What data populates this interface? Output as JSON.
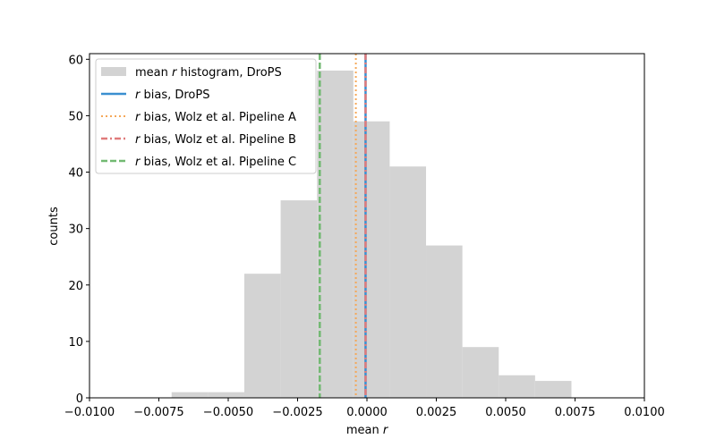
{
  "chart_data": {
    "type": "bar",
    "xlabel": "mean r",
    "xlabel_parts": {
      "prefix": "mean ",
      "italic": "r"
    },
    "ylabel": "counts",
    "xlim": [
      -0.01,
      0.01
    ],
    "ylim": [
      0,
      61
    ],
    "grid": false,
    "x_ticks": [
      -0.01,
      -0.0075,
      -0.005,
      -0.0025,
      0.0,
      0.0025,
      0.005,
      0.0075,
      0.01
    ],
    "x_tick_labels": [
      "−0.0100",
      "−0.0075",
      "−0.0050",
      "−0.0025",
      "0.0000",
      "0.0025",
      "0.0050",
      "0.0075",
      "0.0100"
    ],
    "y_ticks": [
      0,
      10,
      20,
      30,
      40,
      50,
      60
    ],
    "y_tick_labels": [
      "0",
      "10",
      "20",
      "30",
      "40",
      "50",
      "60"
    ],
    "histogram": {
      "name": "mean r histogram, DroPS",
      "color": "#d3d3d3",
      "bin_edges": [
        -0.00704,
        -0.00573,
        -0.00442,
        -0.00311,
        -0.0018,
        -0.00049,
        0.00082,
        0.00213,
        0.00344,
        0.00475,
        0.00606,
        0.00737
      ],
      "counts": [
        1,
        1,
        22,
        35,
        58,
        49,
        41,
        27,
        9,
        4,
        3
      ]
    },
    "vlines": [
      {
        "name": "r bias, DroPS",
        "x": -5e-05,
        "color": "#3a8fd0",
        "style": "solid"
      },
      {
        "name": "r bias, Wolz et al. Pipeline A",
        "x": -0.0004,
        "color": "#f5a85a",
        "style": "dotted"
      },
      {
        "name": "r bias, Wolz et al. Pipeline B",
        "x": -5e-05,
        "color": "#e07b7b",
        "style": "dashdot"
      },
      {
        "name": "r bias, Wolz et al. Pipeline C",
        "x": -0.0017,
        "color": "#72b972",
        "style": "dashed"
      }
    ],
    "legend": {
      "placement": "top-left",
      "entries": [
        {
          "prefix": "mean ",
          "italic": "r",
          "suffix": " histogram, DroPS"
        },
        {
          "prefix": "",
          "italic": "r",
          "suffix": " bias, DroPS"
        },
        {
          "prefix": "",
          "italic": "r",
          "suffix": " bias, Wolz et al. Pipeline A"
        },
        {
          "prefix": "",
          "italic": "r",
          "suffix": " bias, Wolz et al. Pipeline B"
        },
        {
          "prefix": "",
          "italic": "r",
          "suffix": " bias, Wolz et al. Pipeline C"
        }
      ]
    }
  }
}
